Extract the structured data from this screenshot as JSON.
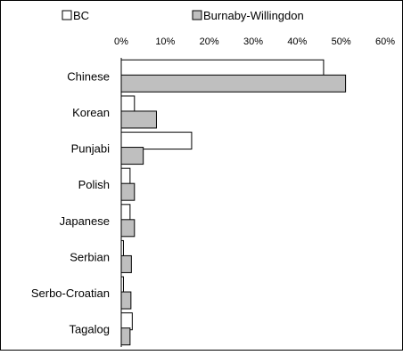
{
  "chart_data": {
    "type": "bar",
    "orientation": "horizontal",
    "categories": [
      "Chinese",
      "Korean",
      "Punjabi",
      "Polish",
      "Japanese",
      "Serbian",
      "Serbo-Croatian",
      "Tagalog"
    ],
    "series": [
      {
        "name": "BC",
        "values": [
          46,
          3,
          16,
          2,
          2,
          0.5,
          0.5,
          2.5
        ],
        "color": "#ffffff"
      },
      {
        "name": "Burnaby-Willingdon",
        "values": [
          51,
          8,
          5,
          3,
          3,
          2.3,
          2.2,
          2
        ],
        "color": "#bfbfbf"
      }
    ],
    "title": "",
    "xlabel": "",
    "ylabel": "",
    "xlim": [
      0,
      60
    ],
    "ticks": [
      "0%",
      "10%",
      "20%",
      "30%",
      "40%",
      "50%",
      "60%"
    ],
    "tick_values": [
      0,
      10,
      20,
      30,
      40,
      50,
      60
    ],
    "grid": false,
    "legend_placement": "top"
  }
}
